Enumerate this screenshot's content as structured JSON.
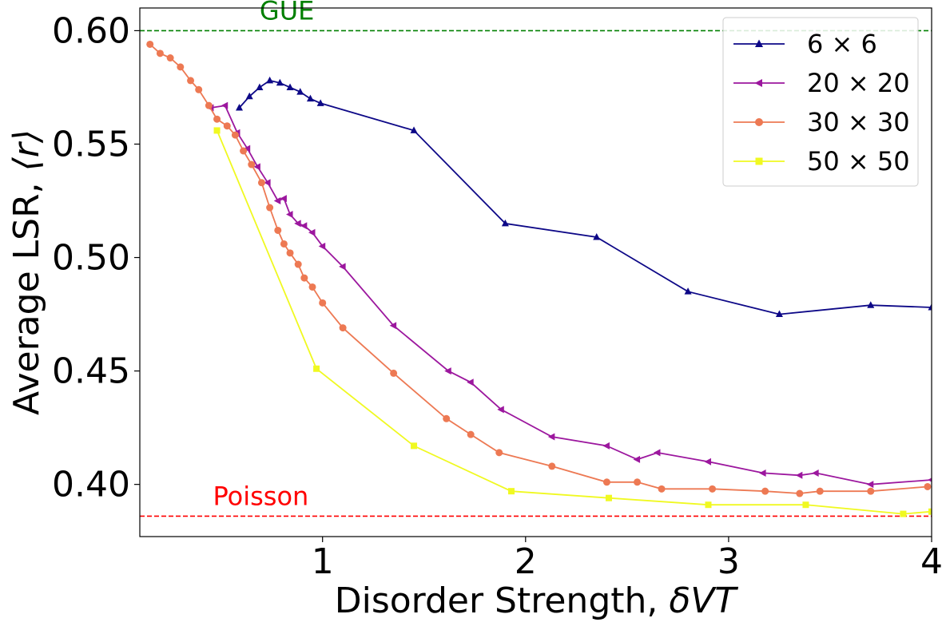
{
  "chart_data": {
    "type": "line",
    "xlabel_prefix": "Disorder Strength, ",
    "xlabel_math": "δVT",
    "ylabel_prefix": "Average LSR, ",
    "ylabel_math": "⟨r⟩",
    "xlim": [
      0.1,
      4.0
    ],
    "ylim": [
      0.377,
      0.61
    ],
    "x_ticks": [
      1,
      2,
      3,
      4
    ],
    "x_tick_labels": [
      "1",
      "2",
      "3",
      "4"
    ],
    "y_ticks": [
      0.4,
      0.45,
      0.5,
      0.55,
      0.6
    ],
    "y_tick_labels": [
      "0.40",
      "0.45",
      "0.50",
      "0.55",
      "0.60"
    ],
    "grid": false,
    "legend_position": "top-right",
    "reference_lines": [
      {
        "label": "GUE",
        "y": 0.6,
        "color": "#008000",
        "label_x": 0.69
      },
      {
        "label": "Poisson",
        "y": 0.386,
        "color": "#ff0000",
        "label_x": 0.46
      }
    ],
    "series": [
      {
        "name": "6 × 6",
        "color": "#0d0887",
        "marker": "triangle-up",
        "x": [
          0.59,
          0.64,
          0.69,
          0.74,
          0.79,
          0.84,
          0.89,
          0.94,
          0.99,
          1.45,
          1.9,
          2.35,
          2.8,
          3.25,
          3.7,
          4.0
        ],
        "y": [
          0.566,
          0.571,
          0.575,
          0.578,
          0.577,
          0.575,
          0.573,
          0.57,
          0.568,
          0.556,
          0.515,
          0.509,
          0.485,
          0.475,
          0.479,
          0.478
        ]
      },
      {
        "name": "20 × 20",
        "color": "#9c179e",
        "marker": "triangle-left",
        "x": [
          0.45,
          0.52,
          0.58,
          0.63,
          0.68,
          0.73,
          0.78,
          0.81,
          0.84,
          0.88,
          0.91,
          0.95,
          1.0,
          1.1,
          1.35,
          1.62,
          1.73,
          1.88,
          2.13,
          2.4,
          2.55,
          2.65,
          2.9,
          3.17,
          3.35,
          3.43,
          3.7,
          4.0
        ],
        "y": [
          0.566,
          0.567,
          0.555,
          0.548,
          0.54,
          0.533,
          0.525,
          0.526,
          0.519,
          0.515,
          0.514,
          0.511,
          0.505,
          0.496,
          0.47,
          0.45,
          0.445,
          0.433,
          0.421,
          0.417,
          0.411,
          0.414,
          0.41,
          0.405,
          0.404,
          0.405,
          0.4,
          0.402
        ]
      },
      {
        "name": "30 × 30",
        "color": "#ed7953",
        "marker": "circle",
        "x": [
          0.15,
          0.2,
          0.25,
          0.3,
          0.35,
          0.39,
          0.44,
          0.48,
          0.53,
          0.57,
          0.61,
          0.65,
          0.7,
          0.74,
          0.78,
          0.81,
          0.84,
          0.88,
          0.91,
          0.95,
          1.0,
          1.1,
          1.35,
          1.61,
          1.73,
          1.87,
          2.13,
          2.4,
          2.55,
          2.67,
          2.92,
          3.18,
          3.35,
          3.45,
          3.7,
          3.98
        ],
        "y": [
          0.594,
          0.59,
          0.588,
          0.584,
          0.578,
          0.574,
          0.567,
          0.561,
          0.558,
          0.554,
          0.547,
          0.541,
          0.533,
          0.522,
          0.512,
          0.506,
          0.502,
          0.497,
          0.491,
          0.487,
          0.48,
          0.469,
          0.449,
          0.429,
          0.422,
          0.414,
          0.408,
          0.401,
          0.401,
          0.398,
          0.398,
          0.397,
          0.396,
          0.397,
          0.397,
          0.399
        ]
      },
      {
        "name": "50 × 50",
        "color": "#f0f921",
        "marker": "square",
        "x": [
          0.48,
          0.97,
          1.45,
          1.93,
          2.41,
          2.9,
          3.38,
          3.86,
          4.0
        ],
        "y": [
          0.556,
          0.451,
          0.417,
          0.397,
          0.394,
          0.391,
          0.391,
          0.387,
          0.388
        ]
      }
    ]
  }
}
